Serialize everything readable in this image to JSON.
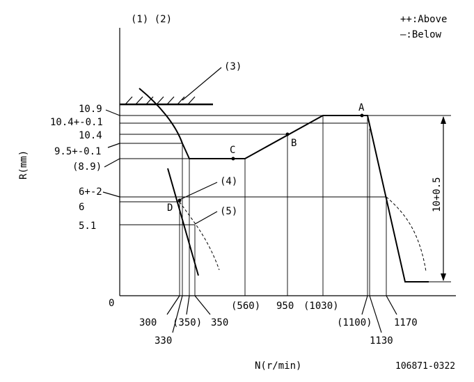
{
  "corner_labels": {
    "left": "(1) (2)"
  },
  "legend": {
    "above": "++:Above",
    "below": "—:Below"
  },
  "stop_label": "(3)",
  "y_axis": {
    "title": "R(mm)",
    "origin": "0",
    "ticks": [
      "10.9",
      "10.4+-0.1",
      "10.4",
      "9.5+-0.1",
      "(8.9)",
      "6+-2",
      "6",
      "5.1"
    ]
  },
  "x_axis": {
    "title": "N(r/min)",
    "ticks_row1": [
      "300",
      "(350)",
      "350",
      "(560)",
      "950",
      "(1030)",
      "(1100)",
      "1170"
    ],
    "ticks_row2": [
      "330",
      "1130"
    ]
  },
  "points": {
    "a": "A",
    "b": "B",
    "c": "C",
    "d": "D"
  },
  "callouts": {
    "c4": "(4)",
    "c5": "(5)"
  },
  "range_label": "10+0.5",
  "doc_id": "106871-0322"
}
